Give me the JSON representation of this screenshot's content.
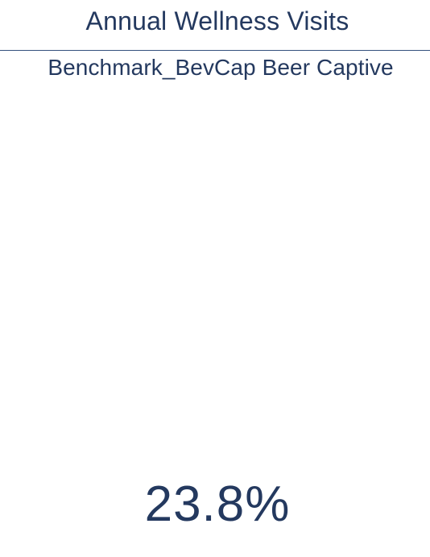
{
  "card": {
    "title": "Annual Wellness Visits",
    "subtitle": "Benchmark_BevCap Beer Captive",
    "metric_value": "23.8%"
  },
  "colors": {
    "text": "#24395f",
    "divider": "#35507d",
    "background": "#ffffff"
  }
}
